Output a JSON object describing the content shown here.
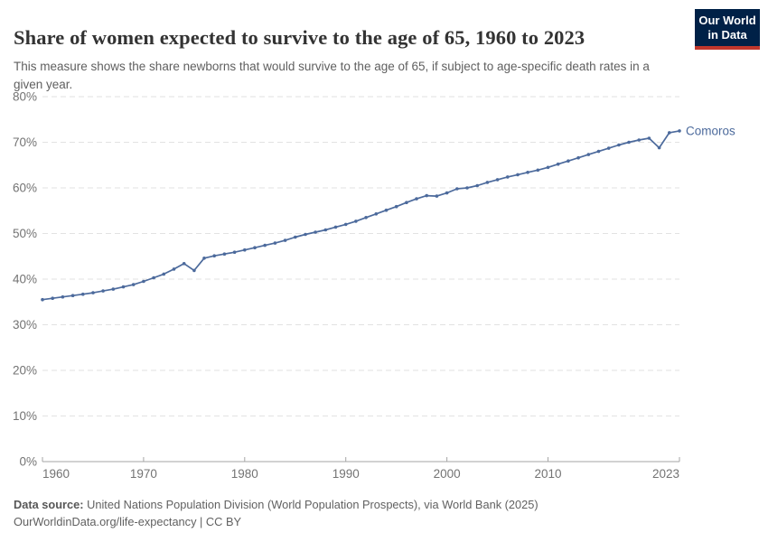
{
  "header": {
    "title": "Share of women expected to survive to the age of 65, 1960 to 2023",
    "subtitle": "This measure shows the share newborns that would survive to the age of 65, if subject to age-specific death rates in a given year.",
    "logo": {
      "line1": "Our World",
      "line2": "in Data"
    }
  },
  "footer": {
    "source_label": "Data source:",
    "source_text": " United Nations Population Division (World Population Prospects), via World Bank (2025)",
    "url": "OurWorldinData.org/life-expectancy",
    "separator": " | ",
    "license": "CC BY"
  },
  "colors": {
    "line": "#4c6a9c",
    "entity_label": "#4c6a9c",
    "grid": "#e2e2e2",
    "axis": "#a5a5a5",
    "tick_text": "#737373",
    "logo_bg": "#002147",
    "logo_red": "#c0372c"
  },
  "chart_data": {
    "type": "line",
    "title": "Share of women expected to survive to the age of 65, 1960 to 2023",
    "xlabel": "",
    "ylabel": "",
    "xlim": [
      1960,
      2023
    ],
    "ylim": [
      0,
      80
    ],
    "x_ticks": [
      1960,
      1970,
      1980,
      1990,
      2000,
      2010,
      2023
    ],
    "y_ticks": [
      0,
      10,
      20,
      30,
      40,
      50,
      60,
      70,
      80
    ],
    "y_tick_suffix": "%",
    "grid": "horizontal-dashed",
    "legend": "end-of-line-label",
    "x": [
      1960,
      1961,
      1962,
      1963,
      1964,
      1965,
      1966,
      1967,
      1968,
      1969,
      1970,
      1971,
      1972,
      1973,
      1974,
      1975,
      1976,
      1977,
      1978,
      1979,
      1980,
      1981,
      1982,
      1983,
      1984,
      1985,
      1986,
      1987,
      1988,
      1989,
      1990,
      1991,
      1992,
      1993,
      1994,
      1995,
      1996,
      1997,
      1998,
      1999,
      2000,
      2001,
      2002,
      2003,
      2004,
      2005,
      2006,
      2007,
      2008,
      2009,
      2010,
      2011,
      2012,
      2013,
      2014,
      2015,
      2016,
      2017,
      2018,
      2019,
      2020,
      2021,
      2022,
      2023
    ],
    "series": [
      {
        "name": "Comoros",
        "values": [
          35.5,
          35.8,
          36.1,
          36.4,
          36.7,
          37.0,
          37.4,
          37.8,
          38.3,
          38.8,
          39.5,
          40.3,
          41.1,
          42.2,
          43.4,
          41.9,
          44.6,
          45.1,
          45.5,
          45.9,
          46.4,
          46.9,
          47.4,
          47.9,
          48.5,
          49.2,
          49.8,
          50.3,
          50.8,
          51.4,
          52.0,
          52.7,
          53.5,
          54.3,
          55.1,
          55.9,
          56.8,
          57.6,
          58.3,
          58.2,
          58.9,
          59.8,
          60.0,
          60.5,
          61.2,
          61.8,
          62.4,
          62.9,
          63.4,
          63.9,
          64.5,
          65.2,
          65.9,
          66.6,
          67.3,
          68.0,
          68.7,
          69.4,
          70.0,
          70.5,
          70.9,
          68.8,
          72.1,
          72.5
        ]
      }
    ]
  }
}
